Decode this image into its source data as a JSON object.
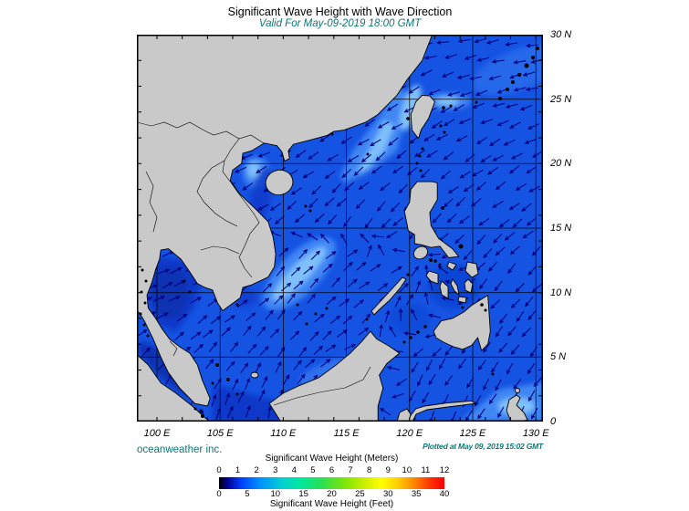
{
  "header": {
    "title": "Significant Wave Height with Wave Direction",
    "subtitle": "Valid For May-09-2019 18:00 GMT"
  },
  "footer": {
    "credit": "oceanweather inc.",
    "plotted": "Plotted at May 09, 2019 15:02 GMT"
  },
  "palette": {
    "teal_text": "#0d7575",
    "land": "#c9c9c9",
    "grid": "#050505",
    "arrow": "#00007d",
    "ocean_base": "#1553e2",
    "ocean_light": "#3f87f4",
    "ocean_lighter": "#7fc0fb",
    "ocean_dark": "#0a38c8",
    "ocean_darker": "#0730b2"
  },
  "map": {
    "lat_ticks": [
      "30 N",
      "25 N",
      "20 N",
      "15 N",
      "10 N",
      "5 N",
      "0"
    ],
    "lon_ticks": [
      "100 E",
      "105 E",
      "110 E",
      "115 E",
      "120 E",
      "125 E",
      "130 E"
    ],
    "lat_range": [
      0,
      30
    ],
    "lon_range": [
      100,
      130
    ],
    "wave_field": {
      "comment": "wave direction arrows; angle in degrees CCW from east (direction waves point toward)",
      "lons": [
        98,
        105,
        110,
        113,
        116,
        120,
        125,
        131
      ],
      "lats": [
        30,
        25,
        20,
        15,
        13.5,
        12,
        10,
        5,
        0
      ],
      "angles_deg_toward": [
        [
          190,
          190,
          190,
          190,
          190,
          190,
          190,
          190
        ],
        [
          196,
          196,
          197,
          200,
          205,
          210,
          200,
          196
        ],
        [
          203,
          205,
          210,
          215,
          218,
          220,
          215,
          210
        ],
        [
          212,
          212,
          218,
          232,
          230,
          226,
          220,
          216
        ],
        [
          25,
          35,
          42,
          40,
          38,
          235,
          228,
          224
        ],
        [
          20,
          30,
          46,
          44,
          36,
          38,
          228,
          225
        ],
        [
          20,
          30,
          46,
          48,
          40,
          42,
          230,
          226
        ],
        [
          40,
          50,
          55,
          40,
          25,
          235,
          238,
          232
        ],
        [
          70,
          75,
          82,
          60,
          45,
          250,
          242,
          238
        ]
      ]
    },
    "wave_height_range_m": [
      0,
      2.5
    ]
  },
  "colorbar": {
    "meters_label": "Significant Wave Height (Meters)",
    "meters_ticks": [
      "0",
      "1",
      "2",
      "3",
      "4",
      "5",
      "6",
      "7",
      "8",
      "9",
      "10",
      "11",
      "12"
    ],
    "feet_label": "Significant Wave Height (Feet)",
    "feet_ticks": [
      "0",
      "5",
      "10",
      "15",
      "20",
      "25",
      "30",
      "35",
      "40"
    ],
    "gradient": [
      {
        "c": "#000000",
        "p": 0
      },
      {
        "c": "#000090",
        "p": 3.5
      },
      {
        "c": "#0040ff",
        "p": 10
      },
      {
        "c": "#0090ff",
        "p": 18
      },
      {
        "c": "#00d0d0",
        "p": 28
      },
      {
        "c": "#00e8a0",
        "p": 36
      },
      {
        "c": "#20e060",
        "p": 44
      },
      {
        "c": "#50e030",
        "p": 50
      },
      {
        "c": "#90e800",
        "p": 58
      },
      {
        "c": "#d8f000",
        "p": 66
      },
      {
        "c": "#ffff00",
        "p": 72
      },
      {
        "c": "#ffc800",
        "p": 80
      },
      {
        "c": "#ff8000",
        "p": 87
      },
      {
        "c": "#ff3000",
        "p": 94
      },
      {
        "c": "#ff0000",
        "p": 100
      }
    ]
  }
}
